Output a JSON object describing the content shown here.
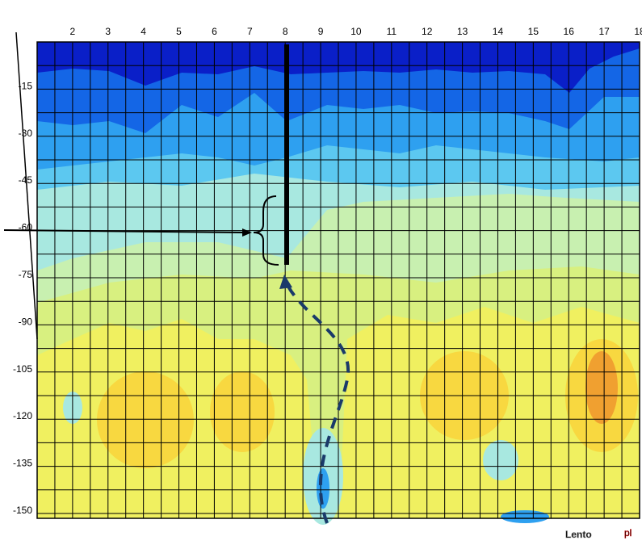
{
  "chart_data": {
    "type": "contour",
    "xticks": [
      2,
      3,
      4,
      5,
      6,
      7,
      8,
      9,
      10,
      11,
      12,
      13,
      14,
      15,
      16,
      17,
      18
    ],
    "yticks": [
      -15,
      -30,
      -45,
      -60,
      -75,
      -90,
      -105,
      -120,
      -135,
      -150
    ],
    "xlim": [
      1,
      18
    ],
    "ylim": [
      0,
      -150
    ],
    "grid": true
  },
  "watermark": "Lento",
  "watermark_suffix": "pl"
}
